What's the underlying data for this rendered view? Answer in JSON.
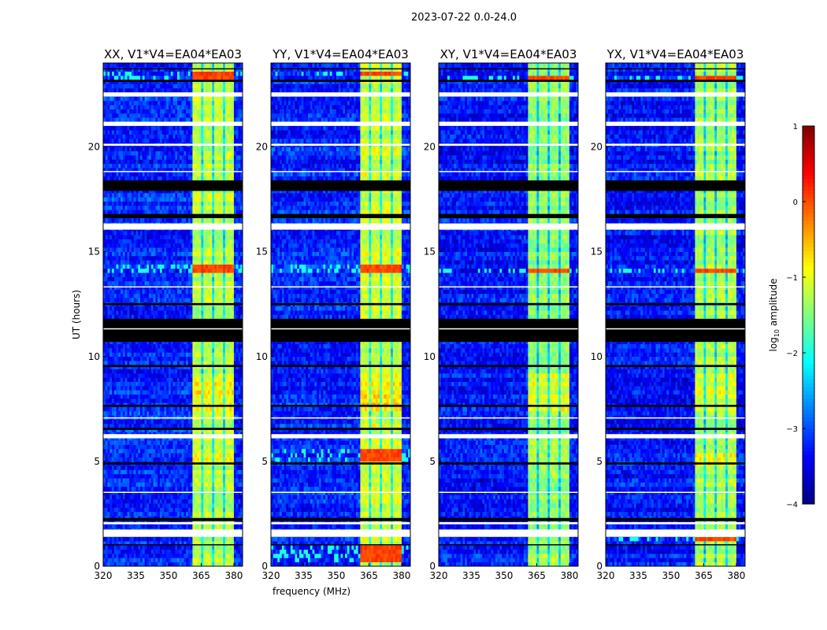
{
  "figure_title": "2023-07-22 0.0-24.0",
  "chart_data": [
    {
      "type": "heatmap",
      "title": "XX, V1*V4=EA04*EA03",
      "xlabel": "",
      "ylabel": "UT (hours)",
      "xlim": [
        320,
        384
      ],
      "ylim": [
        0,
        24
      ],
      "xticks": [
        "320",
        "335",
        "350",
        "365",
        "380"
      ],
      "yticks": [
        "0",
        "5",
        "10",
        "15",
        "20"
      ],
      "band_mhz": [
        360.7,
        380.4
      ],
      "subband_edges_mhz": [
        365.6,
        370.5,
        375.5
      ],
      "band_level": -1.2,
      "background_level": -3.2,
      "hot_rows_hours": [
        [
          23.3,
          23.55
        ],
        [
          14.05,
          14.35
        ]
      ],
      "bright_rows_hours": [
        [
          7.5,
          9.3
        ],
        [
          4.8,
          5.5
        ]
      ],
      "flagged_rows_hours": [
        [
          1.4,
          1.75
        ],
        [
          2.0,
          2.1
        ],
        [
          6.1,
          6.3
        ],
        [
          16.05,
          16.35
        ],
        [
          20.05,
          20.15
        ],
        [
          21.0,
          21.2
        ],
        [
          22.4,
          22.6
        ],
        [
          3.5,
          3.55
        ],
        [
          7.05,
          7.1
        ],
        [
          11.3,
          11.35
        ],
        [
          13.3,
          13.35
        ],
        [
          18.8,
          18.85
        ]
      ],
      "dropout_rows_hours": [
        [
          1.0,
          1.05
        ],
        [
          2.15,
          2.3
        ],
        [
          4.85,
          4.95
        ],
        [
          6.5,
          6.6
        ],
        [
          7.6,
          7.7
        ],
        [
          9.5,
          9.6
        ],
        [
          10.7,
          11.8
        ],
        [
          12.45,
          12.55
        ],
        [
          16.6,
          16.8
        ],
        [
          17.9,
          18.4
        ],
        [
          23.1,
          23.2
        ],
        [
          23.7,
          23.75
        ]
      ]
    },
    {
      "type": "heatmap",
      "title": "YY, V1*V4=EA04*EA03",
      "xlabel": "frequency (MHz)",
      "ylabel": "",
      "xlim": [
        320,
        384
      ],
      "ylim": [
        0,
        24
      ],
      "xticks": [
        "320",
        "335",
        "350",
        "365",
        "380"
      ],
      "yticks": [
        "0",
        "5",
        "10",
        "15",
        "20"
      ],
      "band_mhz": [
        360.7,
        380.4
      ],
      "subband_edges_mhz": [
        365.6,
        370.5,
        375.5
      ],
      "band_level": -1.1,
      "background_level": -3.2,
      "hot_rows_hours": [
        [
          23.35,
          23.7
        ],
        [
          14.05,
          14.35
        ],
        [
          0.3,
          1.0
        ],
        [
          5.0,
          5.6
        ]
      ],
      "bright_rows_hours": [
        [
          7.5,
          9.3
        ]
      ],
      "flagged_rows_hours": [
        [
          1.4,
          1.75
        ],
        [
          2.0,
          2.1
        ],
        [
          6.1,
          6.3
        ],
        [
          16.05,
          16.35
        ],
        [
          20.05,
          20.15
        ],
        [
          21.0,
          21.2
        ],
        [
          22.4,
          22.6
        ],
        [
          3.5,
          3.55
        ],
        [
          7.05,
          7.1
        ],
        [
          11.3,
          11.35
        ],
        [
          13.3,
          13.35
        ],
        [
          18.8,
          18.85
        ]
      ],
      "dropout_rows_hours": [
        [
          1.0,
          1.05
        ],
        [
          2.15,
          2.3
        ],
        [
          4.85,
          4.95
        ],
        [
          6.5,
          6.6
        ],
        [
          7.6,
          7.7
        ],
        [
          9.5,
          9.6
        ],
        [
          10.7,
          11.8
        ],
        [
          12.45,
          12.55
        ],
        [
          16.6,
          16.8
        ],
        [
          17.9,
          18.4
        ],
        [
          23.1,
          23.2
        ],
        [
          23.7,
          23.75
        ]
      ]
    },
    {
      "type": "heatmap",
      "title": "XY, V1*V4=EA04*EA03",
      "xlabel": "",
      "ylabel": "",
      "xlim": [
        320,
        384
      ],
      "ylim": [
        0,
        24
      ],
      "xticks": [
        "320",
        "335",
        "350",
        "365",
        "380"
      ],
      "yticks": [
        "0",
        "5",
        "10",
        "15",
        "20"
      ],
      "band_mhz": [
        360.7,
        380.4
      ],
      "subband_edges_mhz": [
        365.6,
        370.5,
        375.5
      ],
      "band_level": -1.4,
      "background_level": -3.3,
      "hot_rows_hours": [
        [
          23.3,
          23.5
        ],
        [
          14.05,
          14.3
        ]
      ],
      "bright_rows_hours": [
        [
          7.5,
          9.3
        ]
      ],
      "flagged_rows_hours": [
        [
          1.4,
          1.75
        ],
        [
          2.0,
          2.1
        ],
        [
          6.1,
          6.3
        ],
        [
          16.05,
          16.35
        ],
        [
          20.05,
          20.15
        ],
        [
          21.0,
          21.2
        ],
        [
          22.4,
          22.6
        ],
        [
          3.5,
          3.55
        ],
        [
          7.05,
          7.1
        ],
        [
          11.3,
          11.35
        ],
        [
          13.3,
          13.35
        ],
        [
          18.8,
          18.85
        ]
      ],
      "dropout_rows_hours": [
        [
          1.0,
          1.05
        ],
        [
          2.15,
          2.3
        ],
        [
          4.85,
          4.95
        ],
        [
          6.5,
          6.6
        ],
        [
          7.6,
          7.7
        ],
        [
          9.5,
          9.6
        ],
        [
          10.7,
          11.8
        ],
        [
          12.45,
          12.55
        ],
        [
          16.6,
          16.8
        ],
        [
          17.9,
          18.4
        ],
        [
          23.1,
          23.2
        ],
        [
          23.7,
          23.75
        ]
      ]
    },
    {
      "type": "heatmap",
      "title": "YX, V1*V4=EA04*EA03",
      "xlabel": "",
      "ylabel": "",
      "xlim": [
        320,
        384
      ],
      "ylim": [
        0,
        24
      ],
      "xticks": [
        "320",
        "335",
        "350",
        "365",
        "380"
      ],
      "yticks": [
        "0",
        "5",
        "10",
        "15",
        "20"
      ],
      "band_mhz": [
        360.7,
        380.4
      ],
      "subband_edges_mhz": [
        365.6,
        370.5,
        375.5
      ],
      "band_level": -1.3,
      "background_level": -3.3,
      "hot_rows_hours": [
        [
          23.3,
          23.5
        ],
        [
          14.05,
          14.3
        ],
        [
          1.3,
          1.45
        ]
      ],
      "bright_rows_hours": [
        [
          7.5,
          9.3
        ],
        [
          4.8,
          5.5
        ]
      ],
      "flagged_rows_hours": [
        [
          1.4,
          1.75
        ],
        [
          2.0,
          2.1
        ],
        [
          6.1,
          6.3
        ],
        [
          16.05,
          16.35
        ],
        [
          20.05,
          20.15
        ],
        [
          21.0,
          21.2
        ],
        [
          22.4,
          22.6
        ],
        [
          3.5,
          3.55
        ],
        [
          7.05,
          7.1
        ],
        [
          11.3,
          11.35
        ],
        [
          13.3,
          13.35
        ],
        [
          18.8,
          18.85
        ]
      ],
      "dropout_rows_hours": [
        [
          1.0,
          1.05
        ],
        [
          2.15,
          2.3
        ],
        [
          4.85,
          4.95
        ],
        [
          6.5,
          6.6
        ],
        [
          7.6,
          7.7
        ],
        [
          9.5,
          9.6
        ],
        [
          10.7,
          11.8
        ],
        [
          12.45,
          12.55
        ],
        [
          16.6,
          16.8
        ],
        [
          17.9,
          18.4
        ],
        [
          23.1,
          23.2
        ],
        [
          23.7,
          23.75
        ]
      ]
    }
  ],
  "colorbar": {
    "label_prefix": "log",
    "label_sub": "10",
    "label_suffix": " amplitude",
    "range": [
      -4,
      1
    ],
    "ticks": [
      "1",
      "0",
      "−1",
      "−2",
      "−3",
      "−4"
    ],
    "tick_values": [
      1,
      0,
      -1,
      -2,
      -3,
      -4
    ],
    "colormap": "jet"
  }
}
